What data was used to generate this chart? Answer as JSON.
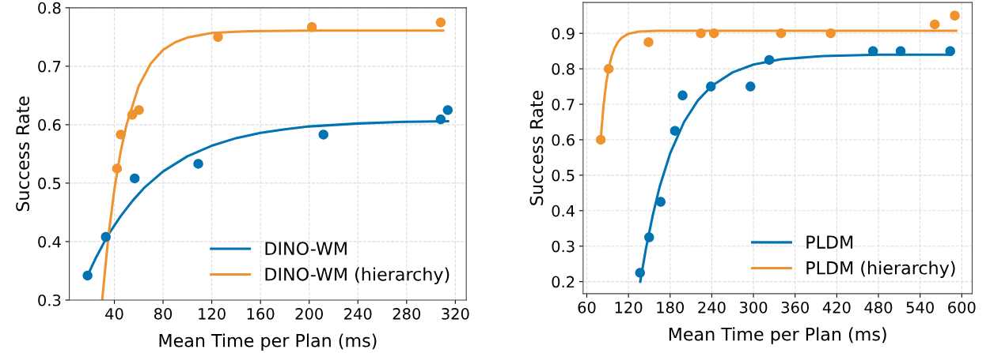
{
  "chart_data": [
    {
      "type": "scatter",
      "xlabel": "Mean Time per Plan (ms)",
      "ylabel": "Success Rate",
      "xlim": [
        3,
        329
      ],
      "xticks": [
        40,
        80,
        120,
        160,
        200,
        240,
        280,
        320
      ],
      "ylim": [
        0.3,
        0.8
      ],
      "yticks": [
        0.3,
        0.4,
        0.5,
        0.6,
        0.7,
        0.8
      ],
      "grid": true,
      "legend": "bottom right",
      "series": [
        {
          "marker": "circle",
          "color": "#0173b2",
          "x": [
            18,
            33,
            56.7,
            108.9,
            211.7,
            308,
            313.8
          ],
          "values": [
            0.342,
            0.408,
            0.508,
            0.533,
            0.583,
            0.609,
            0.625
          ]
        },
        {
          "marker": "circle",
          "color": "#f0922e",
          "x": [
            42.2,
            45.2,
            54.7,
            60.2,
            125.1,
            202.2,
            308
          ],
          "values": [
            0.525,
            0.583,
            0.617,
            0.625,
            0.75,
            0.767,
            0.775
          ]
        },
        {
          "type": "line",
          "name": "DINO-WM",
          "color": "#0173b2",
          "x": [
            18,
            25,
            35,
            45,
            55,
            65,
            80,
            100,
            120,
            140,
            160,
            180,
            200,
            240,
            280,
            314
          ],
          "values": [
            0.342,
            0.373,
            0.412,
            0.443,
            0.47,
            0.493,
            0.52,
            0.546,
            0.564,
            0.577,
            0.586,
            0.592,
            0.597,
            0.602,
            0.605,
            0.606
          ]
        },
        {
          "type": "line",
          "name": "DINO-WM (hierarchy)",
          "color": "#f0922e",
          "x": [
            30,
            35,
            40,
            45,
            50,
            60,
            70,
            80,
            90,
            100,
            120,
            150,
            200,
            310
          ],
          "values": [
            0.3,
            0.407,
            0.489,
            0.552,
            0.6,
            0.666,
            0.705,
            0.728,
            0.741,
            0.749,
            0.757,
            0.76,
            0.761,
            0.761
          ]
        }
      ]
    },
    {
      "type": "scatter",
      "xlabel": "Mean Time per Plan (ms)",
      "ylabel": "Success Rate",
      "xlim": [
        54.7,
        615
      ],
      "xticks": [
        60,
        120,
        180,
        240,
        300,
        360,
        420,
        480,
        540,
        600
      ],
      "ylim": [
        0.166,
        0.987
      ],
      "yticks": [
        0.2,
        0.3,
        0.4,
        0.5,
        0.6,
        0.7,
        0.8,
        0.9
      ],
      "grid": true,
      "legend": "bottom right",
      "series": [
        {
          "marker": "circle",
          "color": "#0173b2",
          "x": [
            136.7,
            149.8,
            166.4,
            187,
            198,
            238.7,
            295.7,
            322.8,
            472.2,
            512,
            583.4
          ],
          "values": [
            0.225,
            0.325,
            0.425,
            0.625,
            0.725,
            0.75,
            0.75,
            0.825,
            0.85,
            0.85,
            0.85
          ]
        },
        {
          "marker": "circle",
          "color": "#f0922e",
          "x": [
            80.1,
            91.5,
            148.9,
            224.3,
            243.1,
            339.9,
            411.3,
            561.1,
            590
          ],
          "values": [
            0.6,
            0.8,
            0.875,
            0.9,
            0.9,
            0.9,
            0.9,
            0.925,
            0.95
          ]
        },
        {
          "type": "line",
          "name": "PLDM",
          "color": "#0173b2",
          "x": [
            137,
            145,
            155,
            165,
            180,
            200,
            220,
            240,
            270,
            300,
            340,
            400,
            480,
            585
          ],
          "values": [
            0.2,
            0.291,
            0.387,
            0.468,
            0.561,
            0.65,
            0.711,
            0.752,
            0.79,
            0.812,
            0.827,
            0.836,
            0.84,
            0.84
          ]
        },
        {
          "type": "line",
          "name": "PLDM (hierarchy)",
          "color": "#f0922e",
          "x": [
            80,
            84,
            88,
            92,
            96,
            100,
            105,
            110,
            120,
            135,
            160,
            592
          ],
          "values": [
            0.6,
            0.694,
            0.76,
            0.805,
            0.836,
            0.858,
            0.876,
            0.887,
            0.899,
            0.905,
            0.907,
            0.907
          ]
        }
      ]
    }
  ]
}
